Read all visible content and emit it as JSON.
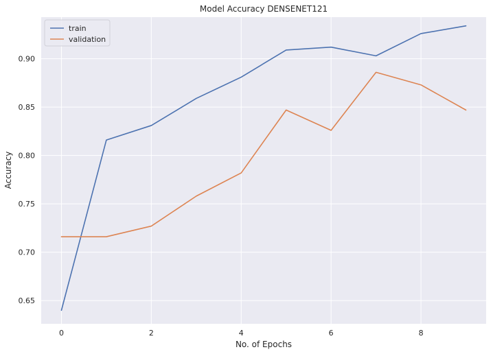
{
  "chart_data": {
    "type": "line",
    "title": "Model Accuracy DENSENET121",
    "xlabel": "No. of Epochs",
    "ylabel": "Accuracy",
    "x": [
      0,
      1,
      2,
      3,
      4,
      5,
      6,
      7,
      8,
      9
    ],
    "xlim": [
      -0.45,
      9.45
    ],
    "ylim": [
      0.626,
      0.943
    ],
    "xticks": [
      0,
      2,
      4,
      6,
      8
    ],
    "xtick_labels": [
      "0",
      "2",
      "4",
      "6",
      "8"
    ],
    "yticks": [
      0.65,
      0.7,
      0.75,
      0.8,
      0.85,
      0.9
    ],
    "ytick_labels": [
      "0.65",
      "0.70",
      "0.75",
      "0.80",
      "0.85",
      "0.90"
    ],
    "grid": true,
    "legend_position": "top-left",
    "series": [
      {
        "name": "train",
        "color": "#4c72b0",
        "values": [
          0.64,
          0.816,
          0.831,
          0.859,
          0.881,
          0.909,
          0.912,
          0.903,
          0.926,
          0.934
        ]
      },
      {
        "name": "validation",
        "color": "#dd8452",
        "values": [
          0.716,
          0.716,
          0.727,
          0.758,
          0.782,
          0.847,
          0.826,
          0.886,
          0.873,
          0.847
        ]
      }
    ],
    "colors": {
      "plot_background": "#eaeaf2",
      "grid": "#ffffff",
      "text": "#262626"
    }
  }
}
